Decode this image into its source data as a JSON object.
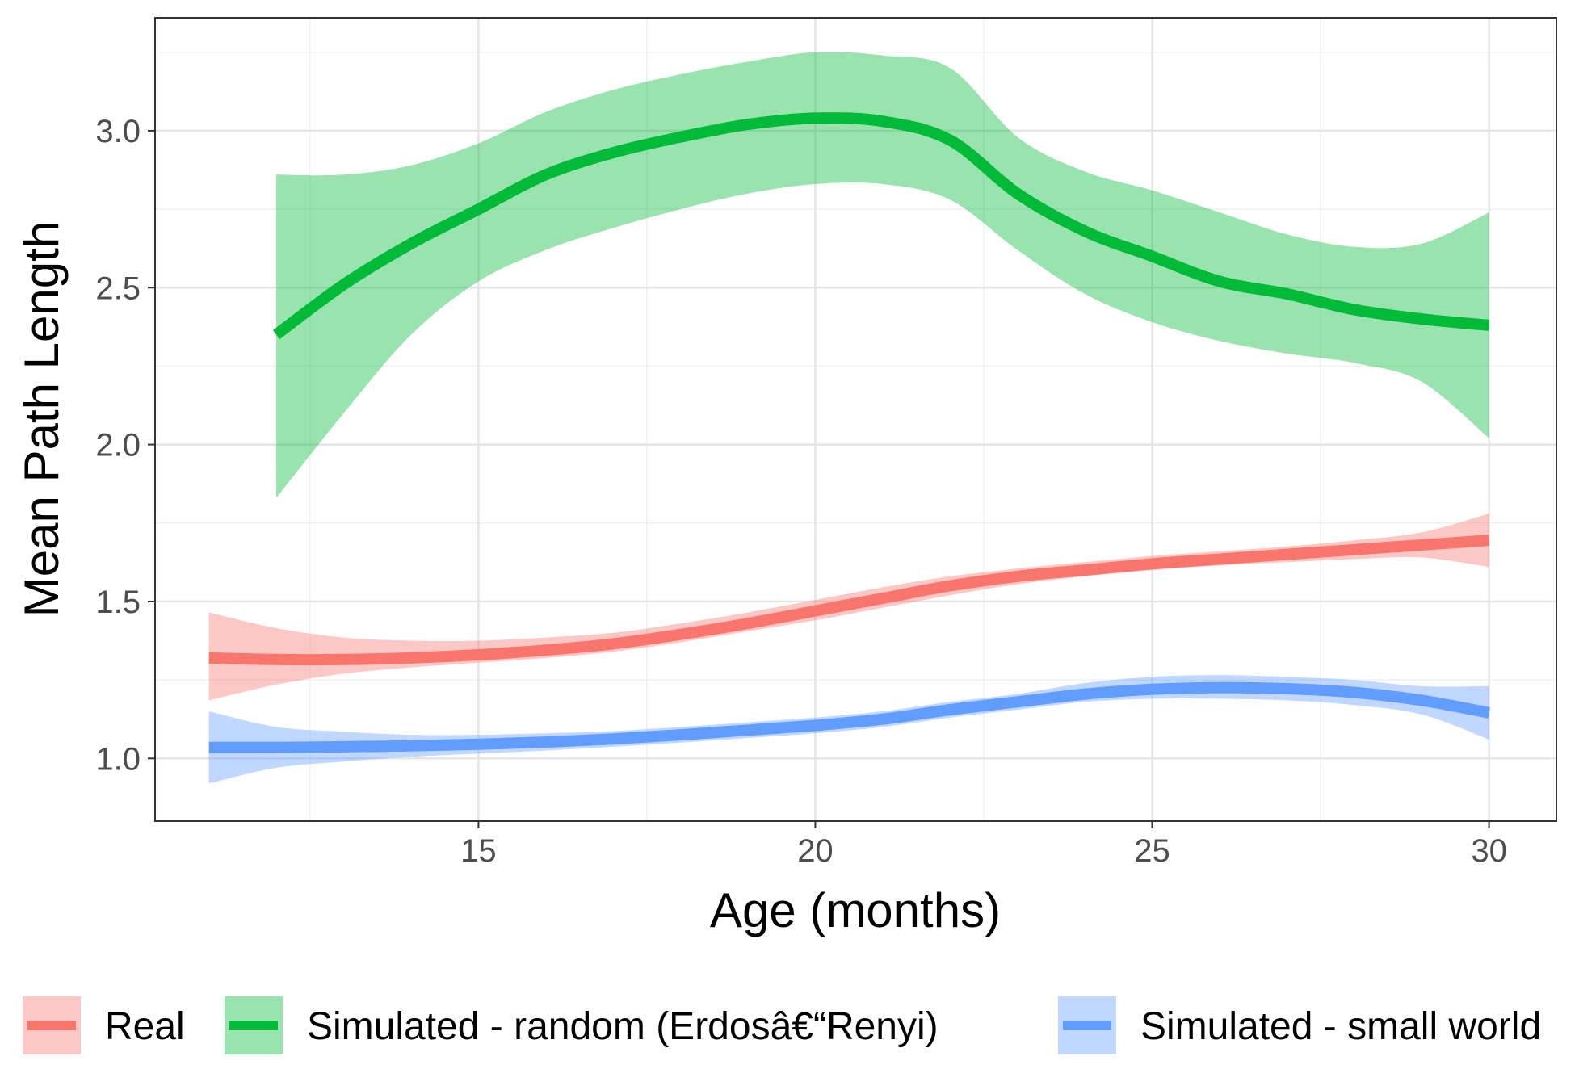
{
  "chart_data": {
    "type": "line",
    "xlabel": "Age (months)",
    "ylabel": "Mean Path Length",
    "xlim": [
      10.2,
      31.0
    ],
    "ylim": [
      0.8,
      3.36
    ],
    "x_ticks": [
      15,
      20,
      25,
      30
    ],
    "x_tick_labels": [
      "15",
      "20",
      "25",
      "30"
    ],
    "y_ticks": [
      1.0,
      1.5,
      2.0,
      2.5,
      3.0
    ],
    "y_tick_labels": [
      "1.0",
      "1.5",
      "2.0",
      "2.5",
      "3.0"
    ],
    "grid": true,
    "legend_position": "bottom",
    "series": [
      {
        "name": "Real",
        "color": "#F8766D",
        "x": [
          11,
          12,
          13,
          14,
          15,
          16,
          17,
          18,
          19,
          20,
          21,
          22,
          23,
          24,
          25,
          26,
          27,
          28,
          29,
          30
        ],
        "y": [
          1.32,
          1.315,
          1.315,
          1.32,
          1.33,
          1.345,
          1.365,
          1.395,
          1.43,
          1.47,
          1.51,
          1.55,
          1.58,
          1.6,
          1.62,
          1.635,
          1.65,
          1.665,
          1.68,
          1.695
        ],
        "lower": [
          1.185,
          1.235,
          1.27,
          1.29,
          1.305,
          1.32,
          1.34,
          1.37,
          1.405,
          1.44,
          1.48,
          1.52,
          1.555,
          1.58,
          1.6,
          1.615,
          1.625,
          1.635,
          1.64,
          1.61
        ],
        "upper": [
          1.465,
          1.415,
          1.385,
          1.375,
          1.375,
          1.385,
          1.4,
          1.43,
          1.465,
          1.505,
          1.545,
          1.58,
          1.605,
          1.625,
          1.645,
          1.66,
          1.675,
          1.695,
          1.72,
          1.78
        ]
      },
      {
        "name": "Simulated - random (Erdosâ€“Renyi)",
        "color": "#00BA38",
        "x": [
          12,
          13,
          14,
          15,
          16,
          17,
          18,
          19,
          20,
          21,
          22,
          23,
          24,
          25,
          26,
          27,
          28,
          29,
          30
        ],
        "y": [
          2.35,
          2.51,
          2.64,
          2.75,
          2.86,
          2.93,
          2.98,
          3.02,
          3.04,
          3.03,
          2.97,
          2.8,
          2.68,
          2.6,
          2.52,
          2.48,
          2.43,
          2.4,
          2.38
        ],
        "lower": [
          1.83,
          2.1,
          2.35,
          2.52,
          2.62,
          2.69,
          2.75,
          2.8,
          2.83,
          2.83,
          2.78,
          2.62,
          2.48,
          2.39,
          2.33,
          2.29,
          2.26,
          2.2,
          2.02
        ],
        "upper": [
          2.86,
          2.86,
          2.89,
          2.96,
          3.06,
          3.13,
          3.18,
          3.22,
          3.25,
          3.24,
          3.2,
          2.98,
          2.87,
          2.81,
          2.74,
          2.67,
          2.63,
          2.64,
          2.74
        ]
      },
      {
        "name": "Simulated - small world",
        "color": "#619CFF",
        "x": [
          11,
          12,
          13,
          14,
          15,
          16,
          17,
          18,
          19,
          20,
          21,
          22,
          23,
          24,
          25,
          26,
          27,
          28,
          29,
          30
        ],
        "y": [
          1.035,
          1.035,
          1.037,
          1.04,
          1.045,
          1.052,
          1.062,
          1.075,
          1.09,
          1.105,
          1.125,
          1.155,
          1.18,
          1.205,
          1.22,
          1.225,
          1.222,
          1.21,
          1.185,
          1.145
        ],
        "lower": [
          0.92,
          0.97,
          0.99,
          1.005,
          1.015,
          1.025,
          1.037,
          1.05,
          1.065,
          1.08,
          1.1,
          1.13,
          1.155,
          1.18,
          1.19,
          1.19,
          1.185,
          1.17,
          1.14,
          1.06
        ],
        "upper": [
          1.15,
          1.1,
          1.085,
          1.075,
          1.075,
          1.08,
          1.087,
          1.1,
          1.115,
          1.13,
          1.15,
          1.18,
          1.205,
          1.24,
          1.26,
          1.265,
          1.26,
          1.25,
          1.23,
          1.23
        ]
      }
    ]
  }
}
